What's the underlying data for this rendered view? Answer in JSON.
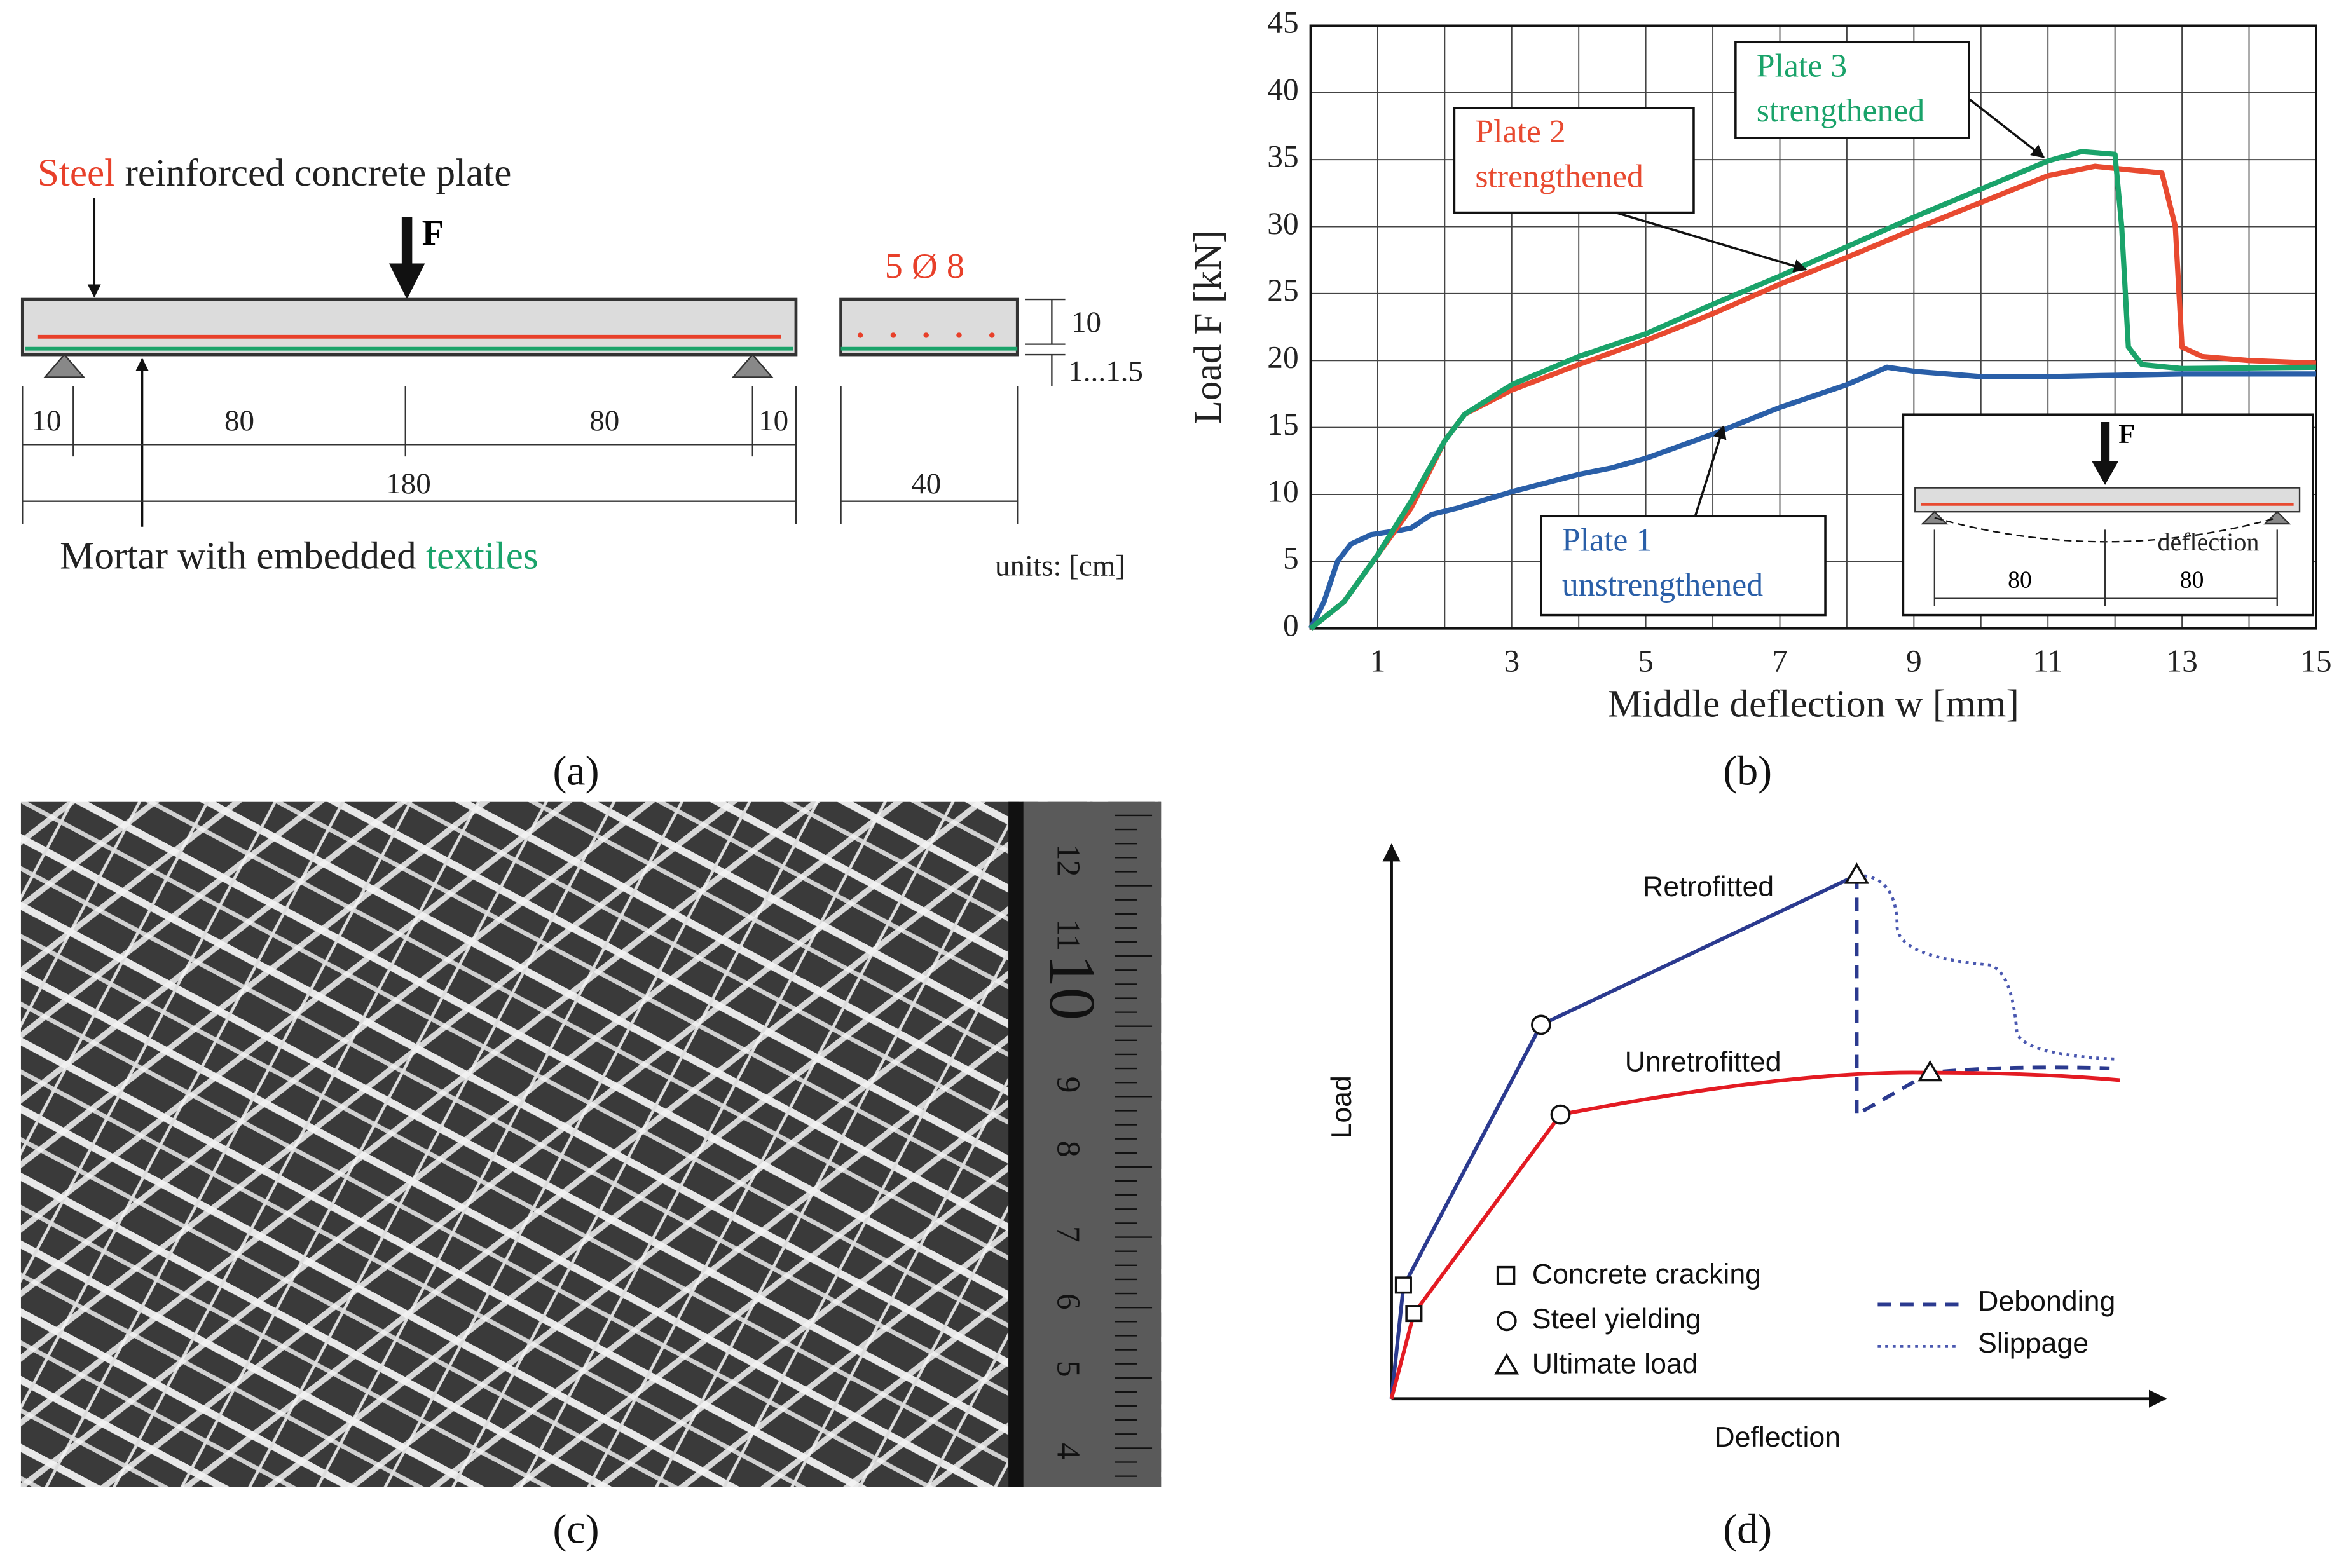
{
  "panels": {
    "a": {
      "label": "(a)",
      "title_red": "Steel",
      "title_rest": " reinforced concrete plate",
      "force": "F",
      "bars": "5 Ø 8",
      "dims": [
        "10",
        "1...1.5",
        "10",
        "80",
        "80",
        "10",
        "180",
        "40"
      ],
      "bottom_text": "Mortar with embedded ",
      "bottom_green": "textiles",
      "units": "units: [cm]"
    },
    "b": {
      "label": "(b)"
    },
    "c": {
      "label": "(c)",
      "ruler": [
        "12",
        "11",
        "10",
        "9",
        "8",
        "7",
        "6",
        "5",
        "4"
      ]
    },
    "d": {
      "label": "(d)",
      "y_label": "Load",
      "x_label": "Deflection",
      "curve_top": "Retrofitted",
      "curve_bottom": "Unretrofitted",
      "legend": [
        "Concrete cracking",
        "Steel yielding",
        "Ultimate load",
        "Debonding",
        "Slippage"
      ]
    }
  },
  "chart_data": {
    "type": "line",
    "x_label": "Middle deflection w [mm]",
    "y_label": "Load F [kN]",
    "xlim": [
      0,
      15
    ],
    "ylim": [
      0,
      45
    ],
    "xticks": [
      1,
      3,
      5,
      7,
      9,
      11,
      13,
      15
    ],
    "xminor_ticks": [
      2,
      4,
      6,
      8,
      10,
      12,
      14
    ],
    "yticks": [
      0,
      5,
      10,
      15,
      20,
      25,
      30,
      35,
      40,
      45
    ],
    "grid": true,
    "series": [
      {
        "name": "Plate 1",
        "line2": "unstrengthened",
        "color": "#2a5fa8",
        "x": [
          0,
          0.2,
          0.4,
          0.6,
          0.9,
          1.3,
          1.5,
          1.8,
          2.2,
          3,
          4,
          4.5,
          5,
          6,
          6.5,
          7,
          8,
          8.6,
          9,
          10,
          11,
          12,
          13,
          14,
          15
        ],
        "values": [
          0,
          2,
          5,
          6.3,
          7,
          7.3,
          7.5,
          8.5,
          9,
          10.2,
          11.5,
          12,
          12.7,
          14.5,
          15.5,
          16.5,
          18.2,
          19.5,
          19.2,
          18.8,
          18.8,
          18.9,
          19,
          19,
          19
        ]
      },
      {
        "name": "Plate 2",
        "line2": "strengthened",
        "color": "#e84a30",
        "x": [
          0,
          0.5,
          1,
          1.5,
          2,
          2.3,
          3,
          4,
          5,
          6,
          7,
          8,
          9,
          10,
          11,
          11.7,
          12.3,
          12.7,
          12.9,
          13,
          13.3,
          14,
          15
        ],
        "values": [
          0,
          2,
          5.5,
          9,
          14,
          16,
          17.8,
          19.7,
          21.5,
          23.5,
          25.7,
          27.7,
          29.8,
          31.8,
          33.8,
          34.5,
          34.2,
          34,
          30,
          21,
          20.3,
          20,
          19.8
        ]
      },
      {
        "name": "Plate 3",
        "line2": "strengthened",
        "color": "#1aa36a",
        "x": [
          0,
          0.5,
          1,
          1.5,
          2,
          2.3,
          3,
          4,
          5,
          6,
          7,
          8,
          9,
          10,
          11,
          11.5,
          12,
          12.1,
          12.2,
          12.4,
          13,
          15
        ],
        "values": [
          0,
          2,
          5.5,
          9.5,
          14,
          16,
          18.2,
          20.3,
          22,
          24.2,
          26.3,
          28.5,
          30.7,
          32.8,
          34.9,
          35.6,
          35.4,
          30,
          21,
          19.7,
          19.4,
          19.5
        ]
      }
    ],
    "inset": {
      "force": "F",
      "deflection": "deflection",
      "span_left": "80",
      "span_right": "80"
    }
  }
}
